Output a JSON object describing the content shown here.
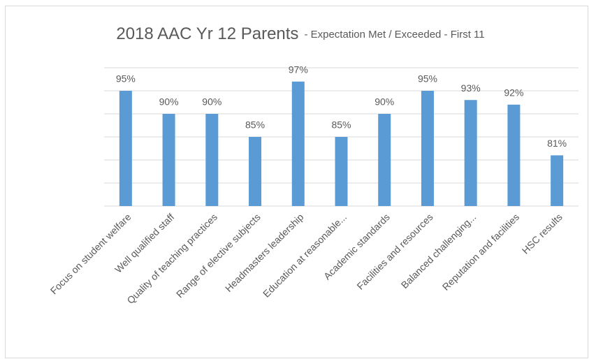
{
  "chart_data": {
    "type": "bar",
    "title": "2018 AAC Yr 12 Parents",
    "subtitle": "- Expectation Met / Exceeded - First 11",
    "categories": [
      "Focus on student welfare",
      "Well qualified staff",
      "Quality of teaching practices",
      "Range of elective subjects",
      "Headmasters leadership",
      "Education at reasonable...",
      "Academic standards",
      "Facilities and resources",
      "Balanced challenging...",
      "Reputation and facilities",
      "HSC results"
    ],
    "values": [
      95,
      90,
      90,
      85,
      97,
      85,
      90,
      95,
      93,
      92,
      81
    ],
    "value_labels": [
      "95%",
      "90%",
      "90%",
      "85%",
      "97%",
      "85%",
      "90%",
      "95%",
      "93%",
      "92%",
      "81%"
    ],
    "color": "#5b9bd5",
    "ylim": [
      70,
      100
    ],
    "yticks": [
      70,
      75,
      80,
      85,
      90,
      95,
      100
    ],
    "grid": true
  }
}
